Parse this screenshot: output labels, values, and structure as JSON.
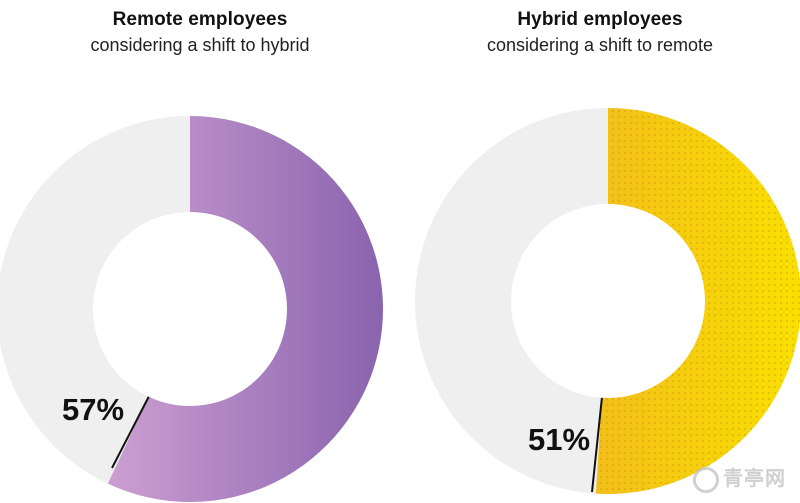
{
  "chart_data": [
    {
      "type": "pie",
      "title": "Remote employees",
      "subtitle": "considering a shift to hybrid",
      "value_percent": 57,
      "label": "57%",
      "colors": {
        "value_start": "#cc9fd2",
        "value_end": "#8a63ae",
        "remainder": "#efefef"
      }
    },
    {
      "type": "pie",
      "title": "Hybrid employees",
      "subtitle": "considering a shift to remote",
      "value_percent": 51,
      "label": "51%",
      "colors": {
        "value_start": "#f2bf1a",
        "value_end": "#f9e000",
        "remainder": "#efefef"
      }
    }
  ],
  "watermark": {
    "text": "青亭网"
  }
}
